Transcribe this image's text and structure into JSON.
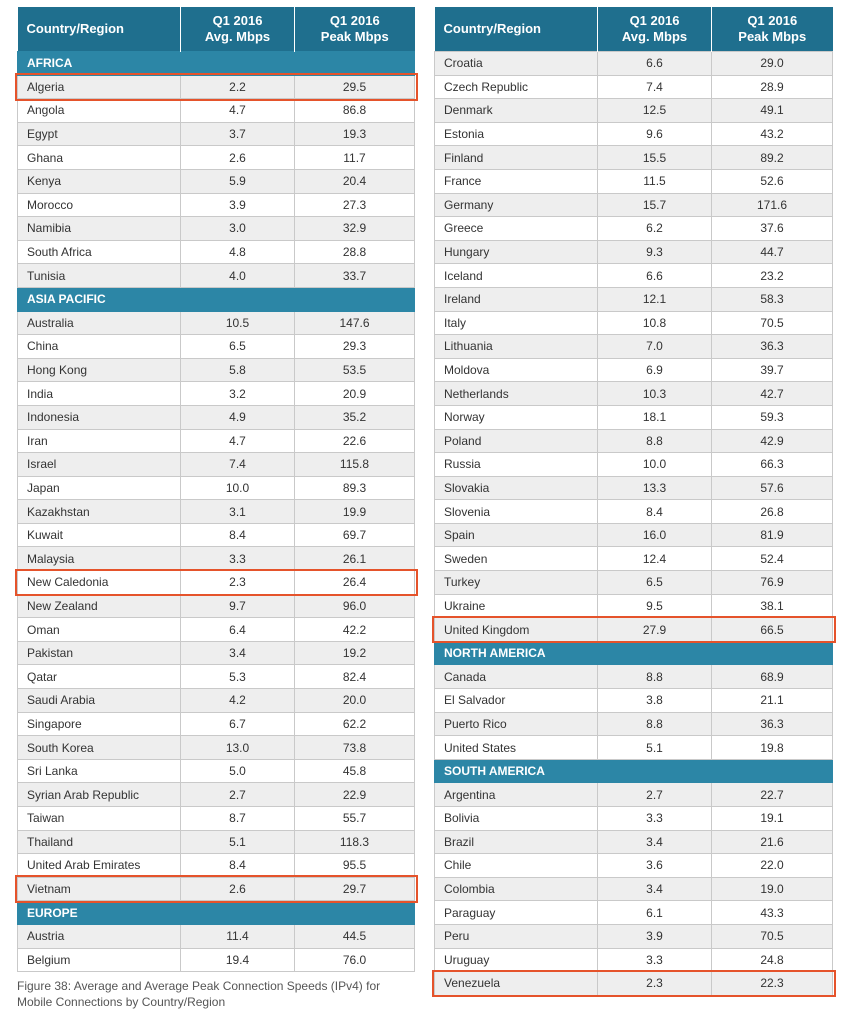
{
  "header": {
    "col1": "Country/Region",
    "col2a": "Q1 2016",
    "col2b": "Avg. Mbps",
    "col3a": "Q1 2016",
    "col3b": "Peak Mbps"
  },
  "highlight_color": "#e5532b",
  "left_rows": [
    {
      "type": "region",
      "name": "AFRICA"
    },
    {
      "name": "Algeria",
      "avg": "2.2",
      "peak": "29.5",
      "highlight": true
    },
    {
      "name": "Angola",
      "avg": "4.7",
      "peak": "86.8"
    },
    {
      "name": "Egypt",
      "avg": "3.7",
      "peak": "19.3"
    },
    {
      "name": "Ghana",
      "avg": "2.6",
      "peak": "11.7"
    },
    {
      "name": "Kenya",
      "avg": "5.9",
      "peak": "20.4"
    },
    {
      "name": "Morocco",
      "avg": "3.9",
      "peak": "27.3"
    },
    {
      "name": "Namibia",
      "avg": "3.0",
      "peak": "32.9"
    },
    {
      "name": "South Africa",
      "avg": "4.8",
      "peak": "28.8"
    },
    {
      "name": "Tunisia",
      "avg": "4.0",
      "peak": "33.7"
    },
    {
      "type": "region",
      "name": "ASIA PACIFIC"
    },
    {
      "name": "Australia",
      "avg": "10.5",
      "peak": "147.6"
    },
    {
      "name": "China",
      "avg": "6.5",
      "peak": "29.3"
    },
    {
      "name": "Hong Kong",
      "avg": "5.8",
      "peak": "53.5"
    },
    {
      "name": "India",
      "avg": "3.2",
      "peak": "20.9"
    },
    {
      "name": "Indonesia",
      "avg": "4.9",
      "peak": "35.2"
    },
    {
      "name": "Iran",
      "avg": "4.7",
      "peak": "22.6"
    },
    {
      "name": "Israel",
      "avg": "7.4",
      "peak": "115.8"
    },
    {
      "name": "Japan",
      "avg": "10.0",
      "peak": "89.3"
    },
    {
      "name": "Kazakhstan",
      "avg": "3.1",
      "peak": "19.9"
    },
    {
      "name": "Kuwait",
      "avg": "8.4",
      "peak": "69.7"
    },
    {
      "name": "Malaysia",
      "avg": "3.3",
      "peak": "26.1"
    },
    {
      "name": "New Caledonia",
      "avg": "2.3",
      "peak": "26.4",
      "highlight": true
    },
    {
      "name": "New Zealand",
      "avg": "9.7",
      "peak": "96.0"
    },
    {
      "name": "Oman",
      "avg": "6.4",
      "peak": "42.2"
    },
    {
      "name": "Pakistan",
      "avg": "3.4",
      "peak": "19.2"
    },
    {
      "name": "Qatar",
      "avg": "5.3",
      "peak": "82.4"
    },
    {
      "name": "Saudi Arabia",
      "avg": "4.2",
      "peak": "20.0"
    },
    {
      "name": "Singapore",
      "avg": "6.7",
      "peak": "62.2"
    },
    {
      "name": "South Korea",
      "avg": "13.0",
      "peak": "73.8"
    },
    {
      "name": "Sri Lanka",
      "avg": "5.0",
      "peak": "45.8"
    },
    {
      "name": "Syrian Arab Republic",
      "avg": "2.7",
      "peak": "22.9"
    },
    {
      "name": "Taiwan",
      "avg": "8.7",
      "peak": "55.7"
    },
    {
      "name": "Thailand",
      "avg": "5.1",
      "peak": "118.3"
    },
    {
      "name": "United Arab Emirates",
      "avg": "8.4",
      "peak": "95.5"
    },
    {
      "name": "Vietnam",
      "avg": "2.6",
      "peak": "29.7",
      "highlight": true
    },
    {
      "type": "region",
      "name": "EUROPE"
    },
    {
      "name": "Austria",
      "avg": "11.4",
      "peak": "44.5"
    },
    {
      "name": "Belgium",
      "avg": "19.4",
      "peak": "76.0"
    }
  ],
  "right_rows": [
    {
      "name": "Croatia",
      "avg": "6.6",
      "peak": "29.0"
    },
    {
      "name": "Czech Republic",
      "avg": "7.4",
      "peak": "28.9"
    },
    {
      "name": "Denmark",
      "avg": "12.5",
      "peak": "49.1"
    },
    {
      "name": "Estonia",
      "avg": "9.6",
      "peak": "43.2"
    },
    {
      "name": "Finland",
      "avg": "15.5",
      "peak": "89.2"
    },
    {
      "name": "France",
      "avg": "11.5",
      "peak": "52.6"
    },
    {
      "name": "Germany",
      "avg": "15.7",
      "peak": "171.6"
    },
    {
      "name": "Greece",
      "avg": "6.2",
      "peak": "37.6"
    },
    {
      "name": "Hungary",
      "avg": "9.3",
      "peak": "44.7"
    },
    {
      "name": "Iceland",
      "avg": "6.6",
      "peak": "23.2"
    },
    {
      "name": "Ireland",
      "avg": "12.1",
      "peak": "58.3"
    },
    {
      "name": "Italy",
      "avg": "10.8",
      "peak": "70.5"
    },
    {
      "name": "Lithuania",
      "avg": "7.0",
      "peak": "36.3"
    },
    {
      "name": "Moldova",
      "avg": "6.9",
      "peak": "39.7"
    },
    {
      "name": "Netherlands",
      "avg": "10.3",
      "peak": "42.7"
    },
    {
      "name": "Norway",
      "avg": "18.1",
      "peak": "59.3"
    },
    {
      "name": "Poland",
      "avg": "8.8",
      "peak": "42.9"
    },
    {
      "name": "Russia",
      "avg": "10.0",
      "peak": "66.3"
    },
    {
      "name": "Slovakia",
      "avg": "13.3",
      "peak": "57.6"
    },
    {
      "name": "Slovenia",
      "avg": "8.4",
      "peak": "26.8"
    },
    {
      "name": "Spain",
      "avg": "16.0",
      "peak": "81.9"
    },
    {
      "name": "Sweden",
      "avg": "12.4",
      "peak": "52.4"
    },
    {
      "name": "Turkey",
      "avg": "6.5",
      "peak": "76.9"
    },
    {
      "name": "Ukraine",
      "avg": "9.5",
      "peak": "38.1"
    },
    {
      "name": "United Kingdom",
      "avg": "27.9",
      "peak": "66.5",
      "highlight": true
    },
    {
      "type": "region",
      "name": "NORTH AMERICA"
    },
    {
      "name": "Canada",
      "avg": "8.8",
      "peak": "68.9"
    },
    {
      "name": "El Salvador",
      "avg": "3.8",
      "peak": "21.1"
    },
    {
      "name": "Puerto Rico",
      "avg": "8.8",
      "peak": "36.3"
    },
    {
      "name": "United States",
      "avg": "5.1",
      "peak": "19.8"
    },
    {
      "type": "region",
      "name": "SOUTH AMERICA"
    },
    {
      "name": "Argentina",
      "avg": "2.7",
      "peak": "22.7"
    },
    {
      "name": "Bolivia",
      "avg": "3.3",
      "peak": "19.1"
    },
    {
      "name": "Brazil",
      "avg": "3.4",
      "peak": "21.6"
    },
    {
      "name": "Chile",
      "avg": "3.6",
      "peak": "22.0"
    },
    {
      "name": "Colombia",
      "avg": "3.4",
      "peak": "19.0"
    },
    {
      "name": "Paraguay",
      "avg": "6.1",
      "peak": "43.3"
    },
    {
      "name": "Peru",
      "avg": "3.9",
      "peak": "70.5"
    },
    {
      "name": "Uruguay",
      "avg": "3.3",
      "peak": "24.8"
    },
    {
      "name": "Venezuela",
      "avg": "2.3",
      "peak": "22.3",
      "highlight": true
    }
  ],
  "caption": "Figure 38: Average and Average Peak Connection Speeds (IPv4) for Mobile Connections by Country/Region"
}
